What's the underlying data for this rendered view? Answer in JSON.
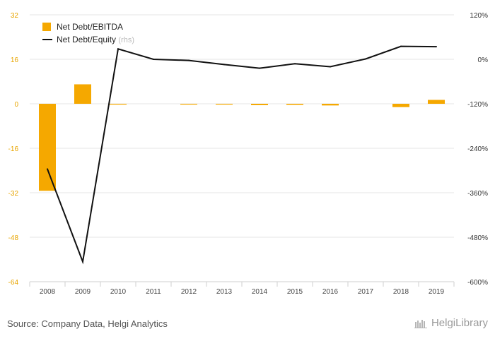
{
  "chart_data": {
    "type": "bar+line",
    "categories": [
      "2008",
      "2009",
      "2010",
      "2011",
      "2012",
      "2013",
      "2014",
      "2015",
      "2016",
      "2017",
      "2018",
      "2019"
    ],
    "series": [
      {
        "name": "Net Debt/EBITDA",
        "kind": "bar",
        "axis": "left",
        "color": "#f5a800",
        "values": [
          -31.3,
          7.0,
          -0.2,
          0.0,
          -0.3,
          -0.3,
          -0.5,
          -0.4,
          -0.6,
          0.0,
          -1.2,
          1.4
        ]
      },
      {
        "name": "Net Debt/Equity",
        "name_suffix": "(rhs)",
        "kind": "line",
        "axis": "right",
        "color": "#111111",
        "values": [
          -296,
          -546,
          28,
          0,
          -3,
          -14,
          -24,
          -12,
          -20,
          1,
          35,
          34
        ]
      }
    ],
    "left_axis": {
      "min": -64,
      "max": 32,
      "ticks": [
        32,
        16,
        0,
        -16,
        -32,
        -48,
        -64
      ],
      "tick_labels": [
        "32",
        "16",
        "0",
        "-16",
        "-32",
        "-48",
        "-64"
      ],
      "color": "#e8a500"
    },
    "right_axis": {
      "min": -600,
      "max": 120,
      "ticks": [
        120,
        0,
        -120,
        -240,
        -360,
        -480,
        -600
      ],
      "tick_labels": [
        "120%",
        "0%",
        "-120%",
        "-240%",
        "-360%",
        "-480%",
        "-600%"
      ]
    },
    "legend": {
      "placement": "top-left"
    },
    "grid": true
  },
  "footer": {
    "source": "Source: Company Data, Helgi Analytics",
    "brand": "HelgiLibrary"
  }
}
